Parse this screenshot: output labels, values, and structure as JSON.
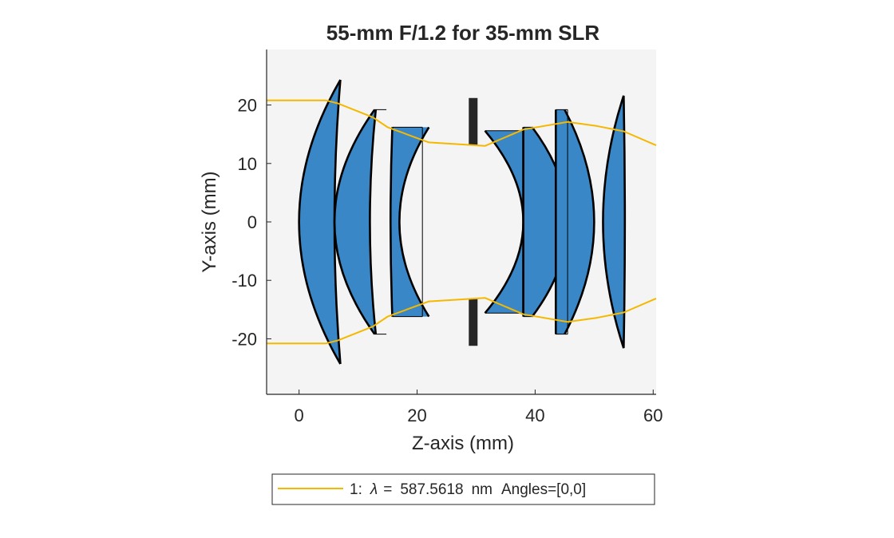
{
  "chart_data": {
    "type": "line",
    "title": "55-mm F/1.2 for 35-mm SLR",
    "xlabel": "Z-axis (mm)",
    "ylabel": "Y-axis (mm)",
    "xlim": [
      -5.5,
      60.5
    ],
    "ylim": [
      -29.5,
      29.5
    ],
    "xticks": [
      0,
      20,
      40,
      60
    ],
    "yticks": [
      -20,
      -10,
      0,
      10,
      20
    ],
    "xtick_labels": [
      "0",
      "20",
      "40",
      "60"
    ],
    "ytick_labels": [
      "-20",
      "-10",
      "0",
      "10",
      "20"
    ],
    "grid": false,
    "lens_color": "#3a87c8",
    "lens_edge_color": "#000000",
    "ray_color": "#f5b800",
    "stop_color": "#262626",
    "background_color": "#f4f4f4",
    "lenses": [
      {
        "front": {
          "vertex": 0.0,
          "edge": 7.0
        },
        "back": {
          "vertex": 6.0,
          "edge": 7.0
        },
        "semi_aperture": 24.3
      },
      {
        "front": {
          "vertex": 6.0,
          "edge": 12.8
        },
        "back": {
          "vertex": 12.0,
          "edge": 13.0
        },
        "semi_aperture": 19.2,
        "flat_front": 14.8
      },
      {
        "front": {
          "vertex": 15.5,
          "edge": 15.8
        },
        "back": {
          "vertex": 17.0,
          "edge": 22.0
        },
        "semi_aperture": 16.2,
        "flat_front": 15.8,
        "flat_back": 20.9
      },
      {
        "front": {
          "vertex": 38.0,
          "edge": 31.5
        },
        "back": {
          "vertex": 38.0,
          "edge": 38.0
        },
        "semi_aperture": 15.6,
        "flat_front": 31.5
      },
      {
        "front": {
          "vertex": 38.0,
          "edge": 38.0
        },
        "back": {
          "vertex": 45.5,
          "edge": 39.5
        },
        "semi_aperture": 16.2
      },
      {
        "front": {
          "vertex": 43.5,
          "edge": 43.5
        },
        "back": {
          "vertex": 50.0,
          "edge": 45.0
        },
        "semi_aperture": 19.2,
        "flat_back": 45.5
      },
      {
        "front": {
          "vertex": 51.5,
          "edge": 55.0
        },
        "back": {
          "vertex": 55.2,
          "edge": 55.0
        },
        "semi_aperture": 21.6
      }
    ],
    "aperture_stop": {
      "z": 29.5,
      "inner": 13.2,
      "outer": 21.2
    },
    "series": [
      {
        "x": [
          -5.5,
          4.5,
          6.5,
          12.5,
          15.0,
          22.0,
          31.5,
          38.0,
          45.5,
          50.5,
          55.0,
          60.5
        ],
        "y": [
          20.8,
          20.8,
          20.3,
          17.9,
          16.2,
          13.6,
          13.0,
          15.8,
          17.1,
          16.4,
          15.5,
          13.1
        ]
      },
      {
        "x": [
          -5.5,
          4.5,
          6.5,
          12.5,
          15.0,
          22.0,
          31.5,
          38.0,
          45.5,
          50.5,
          55.0,
          60.5
        ],
        "y": [
          -20.8,
          -20.8,
          -20.3,
          -17.9,
          -16.2,
          -13.6,
          -13.0,
          -15.8,
          -17.1,
          -16.4,
          -15.5,
          -13.1
        ]
      }
    ],
    "legend": {
      "placement": "bottom",
      "entry_prefix": "1:",
      "lambda_symbol": "λ",
      "equals": "=",
      "wavelength": "587.5618",
      "unit": "nm",
      "angles": "Angles=[0,0]"
    }
  }
}
